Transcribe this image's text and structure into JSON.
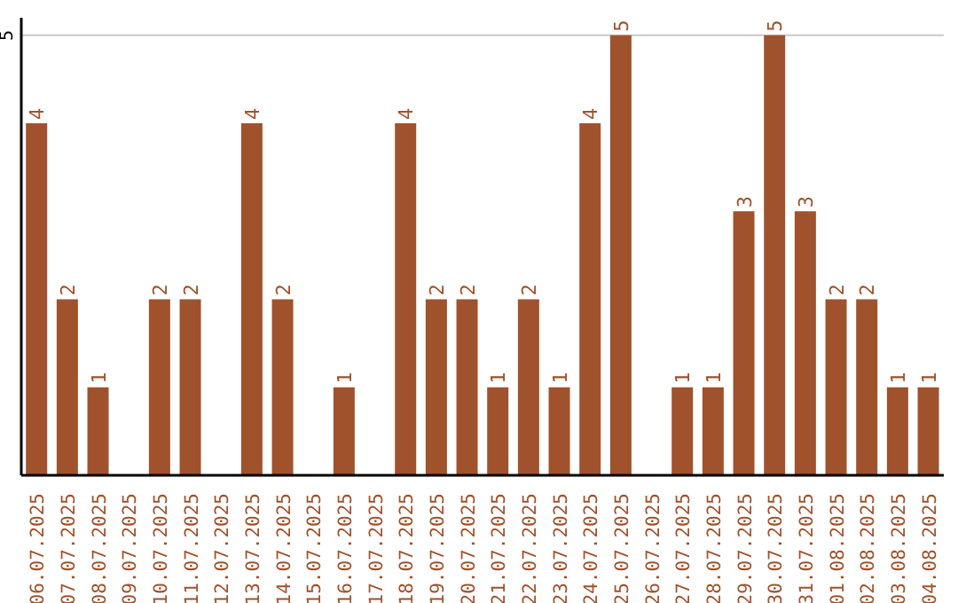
{
  "chart_data": {
    "type": "bar",
    "categories": [
      "06.07.2025",
      "07.07.2025",
      "08.07.2025",
      "09.07.2025",
      "10.07.2025",
      "11.07.2025",
      "12.07.2025",
      "13.07.2025",
      "14.07.2025",
      "15.07.2025",
      "16.07.2025",
      "17.07.2025",
      "18.07.2025",
      "19.07.2025",
      "20.07.2025",
      "21.07.2025",
      "22.07.2025",
      "23.07.2025",
      "24.07.2025",
      "25.07.2025",
      "26.07.2025",
      "27.07.2025",
      "28.07.2025",
      "29.07.2025",
      "30.07.2025",
      "31.07.2025",
      "01.08.2025",
      "02.08.2025",
      "03.08.2025",
      "04.08.2025"
    ],
    "values": [
      4,
      2,
      1,
      0,
      2,
      2,
      0,
      4,
      2,
      0,
      1,
      0,
      4,
      2,
      2,
      1,
      2,
      1,
      4,
      5,
      0,
      1,
      1,
      3,
      5,
      3,
      2,
      2,
      1,
      1
    ],
    "value_labels": [
      "4",
      "2",
      "1",
      null,
      "2",
      "2",
      null,
      "4",
      "2",
      null,
      "1",
      null,
      "4",
      "2",
      "2",
      "1",
      "2",
      "1",
      "4",
      "5",
      null,
      "1",
      "1",
      "3",
      "5",
      "3",
      "2",
      "2",
      "1",
      "1"
    ],
    "color": "#a0522d",
    "ylim": [
      0,
      5.2
    ],
    "yticks": [
      5
    ],
    "grid": "y"
  }
}
